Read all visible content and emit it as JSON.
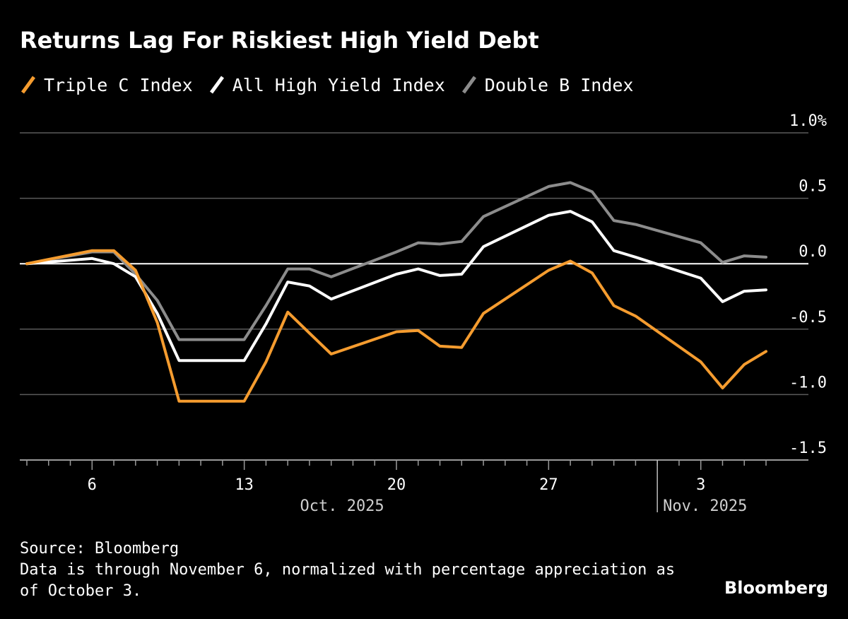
{
  "chart_data": {
    "type": "line",
    "title": "Returns Lag For Riskiest High Yield Debt",
    "xlabel": "",
    "ylabel": "",
    "y_unit_suffix": "%",
    "ylim": [
      -1.5,
      1.0
    ],
    "yticks": [
      1.0,
      0.5,
      0.0,
      -0.5,
      -1.0,
      -1.5
    ],
    "ytick_labels": [
      "1.0%",
      "0.5",
      "0.0",
      "-0.5",
      "-1.0",
      "-1.5"
    ],
    "x_day_range": [
      3,
      37
    ],
    "xticks": [
      {
        "day": 6,
        "label": "6"
      },
      {
        "day": 13,
        "label": "13"
      },
      {
        "day": 20,
        "label": "20"
      },
      {
        "day": 27,
        "label": "27"
      },
      {
        "day": 34,
        "label": "3"
      }
    ],
    "months": [
      {
        "label": "Oct. 2025",
        "center_day": 17.5
      },
      {
        "label": "Nov. 2025",
        "start_day": 32
      }
    ],
    "x": [
      3,
      6,
      7,
      8,
      9,
      10,
      13,
      14,
      15,
      16,
      17,
      20,
      21,
      22,
      23,
      24,
      27,
      28,
      29,
      30,
      31,
      34,
      35,
      36,
      37
    ],
    "series": [
      {
        "name": "Triple C Index",
        "color": "#f59c2f",
        "values": [
          0.0,
          0.1,
          0.1,
          -0.05,
          -0.45,
          -1.05,
          -1.05,
          -0.75,
          -0.37,
          -0.53,
          -0.69,
          -0.52,
          -0.51,
          -0.63,
          -0.64,
          -0.38,
          -0.05,
          0.02,
          -0.07,
          -0.32,
          -0.4,
          -0.75,
          -0.95,
          -0.77,
          -0.67
        ]
      },
      {
        "name": "All High Yield Index",
        "color": "#ffffff",
        "values": [
          0.0,
          0.04,
          0.0,
          -0.1,
          -0.38,
          -0.74,
          -0.74,
          -0.46,
          -0.14,
          -0.17,
          -0.27,
          -0.08,
          -0.04,
          -0.09,
          -0.08,
          0.13,
          0.37,
          0.4,
          0.32,
          0.1,
          0.05,
          -0.11,
          -0.29,
          -0.21,
          -0.2
        ]
      },
      {
        "name": "Double B Index",
        "color": "#8c8c8c",
        "values": [
          0.0,
          0.09,
          0.09,
          -0.08,
          -0.28,
          -0.58,
          -0.58,
          -0.32,
          -0.04,
          -0.04,
          -0.1,
          0.09,
          0.16,
          0.15,
          0.17,
          0.36,
          0.59,
          0.62,
          0.55,
          0.33,
          0.3,
          0.16,
          0.01,
          0.06,
          0.05
        ]
      }
    ],
    "source": "Source: Bloomberg",
    "note": "Data is through November 6, normalized with percentage appreciation as of October 3.",
    "brand": "Bloomberg"
  }
}
